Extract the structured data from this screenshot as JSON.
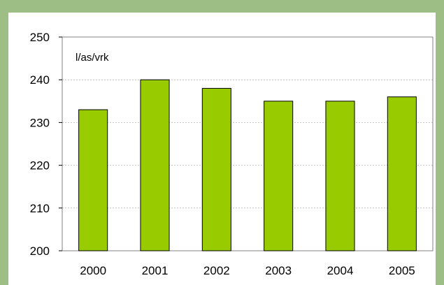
{
  "chart_data": {
    "type": "bar",
    "categories": [
      "2000",
      "2001",
      "2002",
      "2003",
      "2004",
      "2005"
    ],
    "values": [
      233,
      240,
      238,
      235,
      235,
      236
    ],
    "title": "",
    "xlabel": "",
    "ylabel": "",
    "unit_label": "l/as/vrk",
    "ylim": [
      200,
      250
    ],
    "yticks": [
      200,
      210,
      220,
      230,
      240,
      250
    ],
    "ytick_labels": [
      "200",
      "210",
      "220",
      "230",
      "240",
      "250"
    ],
    "grid": true,
    "legend": "none",
    "colors": {
      "bar_fill": "#99cc00",
      "bar_stroke": "#000000",
      "grid": "#c0c0c0",
      "frame": "#9dbf85",
      "plot_border": "#808080"
    }
  }
}
